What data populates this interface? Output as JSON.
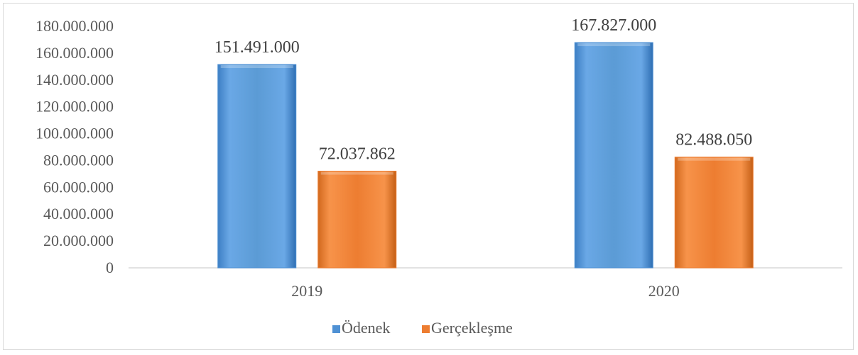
{
  "chart_data": {
    "type": "bar",
    "categories": [
      "2019",
      "2020"
    ],
    "series": [
      {
        "name": "Ödenek",
        "values": [
          151491000,
          167827000
        ],
        "labels": [
          "151.491.000",
          "167.827.000"
        ],
        "color": "#4f91d4"
      },
      {
        "name": "Gerçekleşme",
        "values": [
          72037862,
          82488050
        ],
        "labels": [
          "72.037.862",
          "82.488.050"
        ],
        "color": "#ed7d31"
      }
    ],
    "ylim": [
      0,
      180000000
    ],
    "yticks": [
      0,
      20000000,
      40000000,
      60000000,
      80000000,
      100000000,
      120000000,
      140000000,
      160000000,
      180000000
    ],
    "ytick_labels": [
      "0",
      "20.000.000",
      "40.000.000",
      "60.000.000",
      "80.000.000",
      "100.000.000",
      "120.000.000",
      "140.000.000",
      "160.000.000",
      "180.000.000"
    ],
    "grid": false,
    "legend_position": "bottom"
  }
}
